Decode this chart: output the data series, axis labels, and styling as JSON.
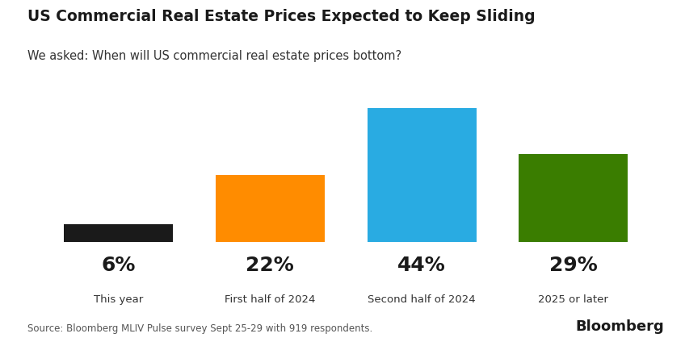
{
  "title": "US Commercial Real Estate Prices Expected to Keep Sliding",
  "subtitle": "We asked: When will US commercial real estate prices bottom?",
  "categories": [
    "This year",
    "First half of 2024",
    "Second half of 2024",
    "2025 or later"
  ],
  "percentages": [
    6,
    22,
    44,
    29
  ],
  "pct_labels": [
    "6%",
    "22%",
    "44%",
    "29%"
  ],
  "bar_colors": [
    "#1a1a1a",
    "#FF8C00",
    "#29ABE2",
    "#3A7D00"
  ],
  "source": "Source: Bloomberg MLIV Pulse survey Sept 25-29 with 919 respondents.",
  "bloomberg_label": "Bloomberg",
  "background_color": "#FFFFFF",
  "title_fontsize": 13.5,
  "subtitle_fontsize": 10.5,
  "pct_fontsize": 18,
  "cat_fontsize": 9.5,
  "source_fontsize": 8.5,
  "bloomberg_fontsize": 13,
  "ylim": [
    0,
    50
  ]
}
